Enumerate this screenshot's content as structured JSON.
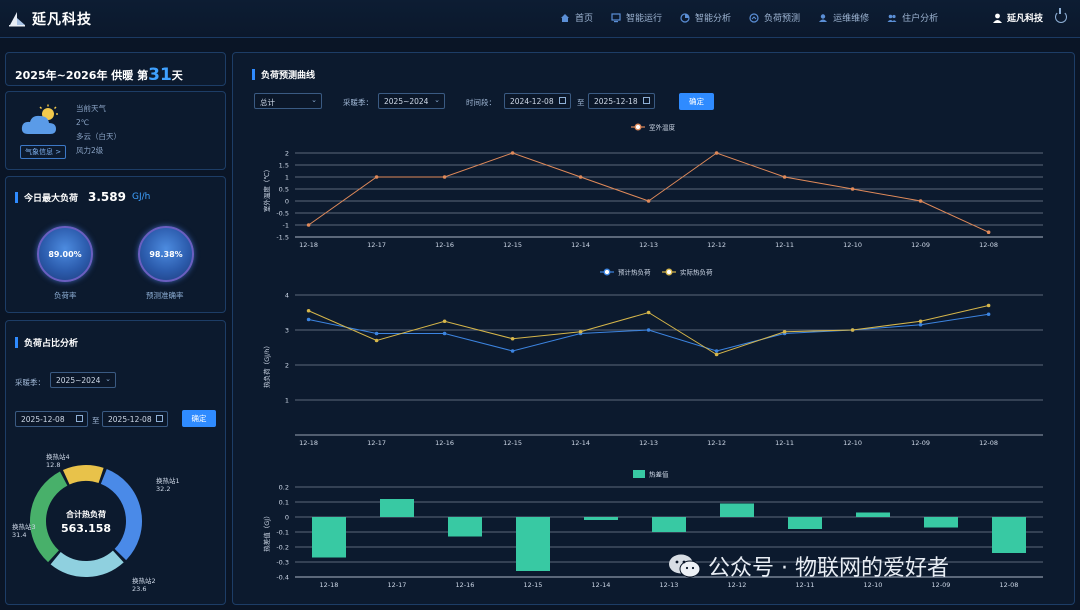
{
  "app": {
    "brand": "延凡科技",
    "nav": [
      {
        "label": "首页",
        "icon": "home-icon"
      },
      {
        "label": "智能运行",
        "icon": "monitor-icon"
      },
      {
        "label": "智能分析",
        "icon": "pie-icon"
      },
      {
        "label": "负荷预测",
        "icon": "forecast-icon"
      },
      {
        "label": "运维维修",
        "icon": "repair-icon"
      },
      {
        "label": "住户分析",
        "icon": "users-icon"
      }
    ],
    "user": "延凡科技"
  },
  "season": {
    "prefix": "2025年~2026年 供暖 第",
    "day": "31",
    "suffix": "天"
  },
  "weather": {
    "button": "气象信息 >",
    "lines": [
      "当前天气",
      "2℃",
      "多云（白天）",
      "风力2级"
    ]
  },
  "max_load": {
    "title": "今日最大负荷",
    "value": "3.589",
    "unit": "GJ/h",
    "load_rate": {
      "value": "89.00%",
      "label": "负荷率"
    },
    "forecast_accuracy": {
      "value": "98.38%",
      "label": "预测准确率"
    }
  },
  "ratio": {
    "title": "负荷占比分析",
    "season_label": "采暖季：",
    "season_value": "2025~2024",
    "date_from": "2025-12-08",
    "to": "至",
    "date_to": "2025-12-08",
    "confirm": "确定",
    "center_label": "合计热负荷",
    "center_value": "563.158",
    "slices": [
      {
        "name": "换热站1",
        "value": 32.2,
        "color": "#4a8ae8"
      },
      {
        "name": "换热站2",
        "value": 23.6,
        "color": "#8fd0df"
      },
      {
        "name": "换热站3",
        "value": 31.4,
        "color": "#48b06a"
      },
      {
        "name": "换热站4",
        "value": 12.8,
        "color": "#e8c24a"
      }
    ]
  },
  "forecast": {
    "title": "负荷预测曲线",
    "type_value": "总计",
    "season_label": "采暖季：",
    "season_value": "2025~2024",
    "period_label": "时间段：",
    "date_from": "2024-12-08",
    "to": "至",
    "date_to": "2025-12-18",
    "confirm": "确定"
  },
  "watermark": "公众号 · 物联网的爱好者",
  "chart_data": [
    {
      "type": "line",
      "categories": [
        "12-18",
        "12-17",
        "12-16",
        "12-15",
        "12-14",
        "12-13",
        "12-12",
        "12-11",
        "12-10",
        "12-09",
        "12-08"
      ],
      "series": [
        {
          "name": "室外温度",
          "values": [
            -1,
            1,
            1,
            2,
            1,
            0,
            2,
            1,
            0.5,
            0,
            -1.3
          ],
          "color": "#e08a5a"
        }
      ],
      "ylabel": "室外温度（℃）",
      "ylim": [
        -1.5,
        2.5
      ],
      "yticks": [
        "2",
        "1.5",
        "1",
        "0.5",
        "0",
        "-0.5",
        "-1",
        "-1.5"
      ],
      "grid": true,
      "legend": "top-center"
    },
    {
      "type": "line",
      "categories": [
        "12-18",
        "12-17",
        "12-16",
        "12-15",
        "12-14",
        "12-13",
        "12-12",
        "12-11",
        "12-10",
        "12-09",
        "12-08"
      ],
      "series": [
        {
          "name": "预计热负荷",
          "values": [
            3.3,
            2.9,
            2.9,
            2.4,
            2.9,
            3.0,
            2.4,
            2.9,
            3.0,
            3.15,
            3.45
          ],
          "color": "#3c84e0"
        },
        {
          "name": "实际热负荷",
          "values": [
            3.55,
            2.7,
            3.25,
            2.75,
            2.95,
            3.5,
            2.3,
            2.95,
            3.0,
            3.25,
            3.7
          ],
          "color": "#d6b64a"
        }
      ],
      "ylabel": "热负荷（GJ/h）",
      "ylim": [
        0,
        4
      ],
      "yticks": [
        "4",
        "3",
        "2",
        "1"
      ],
      "grid": true,
      "legend": "top-center"
    },
    {
      "type": "bar",
      "categories": [
        "12-18",
        "12-17",
        "12-16",
        "12-15",
        "12-14",
        "12-13",
        "12-12",
        "12-11",
        "12-10",
        "12-09",
        "12-08"
      ],
      "series": [
        {
          "name": "热差值",
          "values": [
            -0.27,
            0.12,
            -0.13,
            -0.36,
            -0.02,
            -0.1,
            0.09,
            -0.08,
            0.03,
            -0.07,
            -0.24
          ],
          "color": "#38c9a3"
        }
      ],
      "ylabel": "热差值（GJ）",
      "ylim": [
        -0.4,
        0.2
      ],
      "yticks": [
        "0.2",
        "0.1",
        "0",
        "-0.1",
        "-0.2",
        "-0.3",
        "-0.4"
      ],
      "grid": true,
      "legend": "top-center"
    }
  ]
}
